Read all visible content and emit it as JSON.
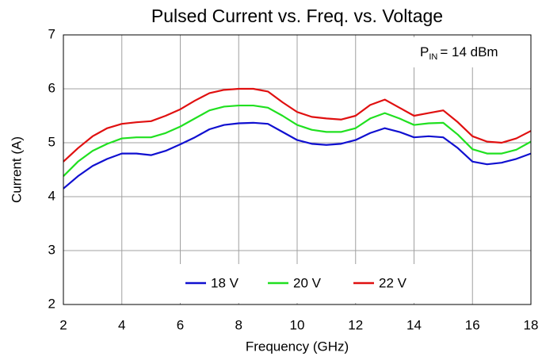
{
  "chart_data": {
    "type": "line",
    "title": "Pulsed Current vs. Freq. vs. Voltage",
    "annotation": {
      "base": "P",
      "sub": "IN",
      "rest": "= 14 dBm"
    },
    "x_label": "Frequency (GHz)",
    "y_label": "Current (A)",
    "x": [
      2,
      2.5,
      3,
      3.5,
      4,
      4.5,
      5,
      5.5,
      6,
      6.5,
      7,
      7.5,
      8,
      8.5,
      9,
      9.5,
      10,
      10.5,
      11,
      11.5,
      12,
      12.5,
      13,
      13.5,
      14,
      14.5,
      15,
      15.5,
      16,
      16.5,
      17,
      17.5,
      18
    ],
    "series": [
      {
        "name": "18 V",
        "color": "#1010d0",
        "values": [
          4.15,
          4.38,
          4.57,
          4.7,
          4.8,
          4.8,
          4.77,
          4.85,
          4.97,
          5.1,
          5.25,
          5.33,
          5.36,
          5.37,
          5.35,
          5.2,
          5.05,
          4.98,
          4.96,
          4.98,
          5.05,
          5.18,
          5.27,
          5.2,
          5.1,
          5.12,
          5.1,
          4.9,
          4.65,
          4.6,
          4.63,
          4.7,
          4.8
        ]
      },
      {
        "name": "20 V",
        "color": "#20e020",
        "values": [
          4.38,
          4.65,
          4.85,
          4.98,
          5.08,
          5.1,
          5.1,
          5.18,
          5.3,
          5.45,
          5.6,
          5.67,
          5.69,
          5.69,
          5.65,
          5.5,
          5.33,
          5.24,
          5.2,
          5.2,
          5.27,
          5.45,
          5.55,
          5.45,
          5.33,
          5.36,
          5.37,
          5.15,
          4.88,
          4.8,
          4.8,
          4.87,
          5.02
        ]
      },
      {
        "name": "22 V",
        "color": "#e01010",
        "values": [
          4.65,
          4.9,
          5.12,
          5.27,
          5.35,
          5.38,
          5.4,
          5.5,
          5.62,
          5.78,
          5.92,
          5.98,
          6.0,
          6.0,
          5.95,
          5.75,
          5.57,
          5.48,
          5.45,
          5.43,
          5.5,
          5.7,
          5.8,
          5.65,
          5.5,
          5.55,
          5.6,
          5.38,
          5.12,
          5.02,
          5.0,
          5.08,
          5.22
        ]
      }
    ],
    "xlim": [
      2,
      18
    ],
    "xticks": [
      2,
      4,
      6,
      8,
      10,
      12,
      14,
      16,
      18
    ],
    "ylim": [
      2,
      7
    ],
    "yticks": [
      2,
      3,
      4,
      5,
      6,
      7
    ],
    "grid": true,
    "legend": "bottom"
  }
}
